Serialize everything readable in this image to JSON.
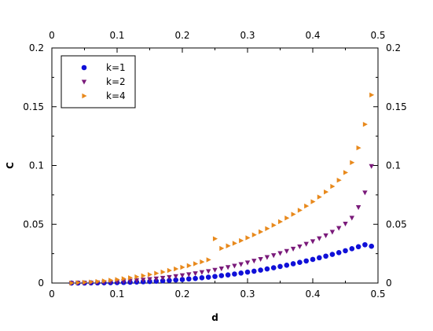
{
  "chart_data": {
    "type": "scatter",
    "title": "",
    "xlabel": "d",
    "ylabel": "C",
    "xlim": [
      0,
      0.5
    ],
    "ylim": [
      0,
      0.2
    ],
    "x_ticks": [
      0,
      0.1,
      0.2,
      0.3,
      0.4,
      0.5
    ],
    "x_tick_labels": [
      "0",
      "0.1",
      "0.2",
      "0.3",
      "0.4",
      "0.5"
    ],
    "y_ticks": [
      0,
      0.05,
      0.1,
      0.15,
      0.2
    ],
    "y_tick_labels": [
      "0",
      "0.05",
      "0.1",
      "0.15",
      "0.2"
    ],
    "mirrored_axes": true,
    "grid": false,
    "legend_position": "top-left",
    "series": [
      {
        "name": "k=1",
        "marker": "circle",
        "color": "#1010d8",
        "x": [
          0.03,
          0.04,
          0.05,
          0.06,
          0.07,
          0.08,
          0.09,
          0.1,
          0.11,
          0.12,
          0.13,
          0.14,
          0.15,
          0.16,
          0.17,
          0.18,
          0.19,
          0.2,
          0.21,
          0.22,
          0.23,
          0.24,
          0.25,
          0.26,
          0.27,
          0.28,
          0.29,
          0.3,
          0.31,
          0.32,
          0.33,
          0.34,
          0.35,
          0.36,
          0.37,
          0.38,
          0.39,
          0.4,
          0.41,
          0.42,
          0.43,
          0.44,
          0.45,
          0.46,
          0.47,
          0.48,
          0.49
        ],
        "y": [
          0,
          0,
          0,
          0.0001,
          0.0001,
          0.0002,
          0.0003,
          0.0004,
          0.0005,
          0.0007,
          0.0009,
          0.0011,
          0.0013,
          0.0016,
          0.0019,
          0.0022,
          0.0026,
          0.003,
          0.0035,
          0.0039,
          0.0045,
          0.005,
          0.0056,
          0.0063,
          0.0069,
          0.0077,
          0.0085,
          0.0093,
          0.0101,
          0.011,
          0.012,
          0.013,
          0.0141,
          0.0152,
          0.0164,
          0.0176,
          0.0188,
          0.0201,
          0.0215,
          0.0229,
          0.0244,
          0.0259,
          0.0275,
          0.0292,
          0.0309,
          0.0326,
          0.0313
        ]
      },
      {
        "name": "k=2",
        "marker": "triangle-down",
        "color": "#7a1a7a",
        "x": [
          0.03,
          0.04,
          0.05,
          0.06,
          0.07,
          0.08,
          0.09,
          0.1,
          0.11,
          0.12,
          0.13,
          0.14,
          0.15,
          0.16,
          0.17,
          0.18,
          0.19,
          0.2,
          0.21,
          0.22,
          0.23,
          0.24,
          0.25,
          0.26,
          0.27,
          0.28,
          0.29,
          0.3,
          0.31,
          0.32,
          0.33,
          0.34,
          0.35,
          0.36,
          0.37,
          0.38,
          0.39,
          0.4,
          0.41,
          0.42,
          0.43,
          0.44,
          0.45,
          0.46,
          0.47,
          0.48,
          0.49
        ],
        "y": [
          0,
          0.0001,
          0.0002,
          0.0003,
          0.0005,
          0.0007,
          0.0009,
          0.0012,
          0.0015,
          0.0019,
          0.0023,
          0.0028,
          0.0033,
          0.0038,
          0.0044,
          0.0051,
          0.0058,
          0.0066,
          0.0074,
          0.0082,
          0.0092,
          0.0101,
          0.0112,
          0.0123,
          0.0135,
          0.0147,
          0.016,
          0.0174,
          0.0189,
          0.0204,
          0.022,
          0.0236,
          0.0254,
          0.0272,
          0.0291,
          0.0311,
          0.0333,
          0.0355,
          0.038,
          0.0405,
          0.0435,
          0.0468,
          0.0505,
          0.0555,
          0.0645,
          0.077,
          0.0995
        ]
      },
      {
        "name": "k=4",
        "marker": "triangle-right",
        "color": "#e8891c",
        "x": [
          0.03,
          0.04,
          0.05,
          0.06,
          0.07,
          0.08,
          0.09,
          0.1,
          0.11,
          0.12,
          0.13,
          0.14,
          0.15,
          0.16,
          0.17,
          0.18,
          0.19,
          0.2,
          0.21,
          0.22,
          0.23,
          0.24,
          0.25,
          0.26,
          0.27,
          0.28,
          0.29,
          0.3,
          0.31,
          0.32,
          0.33,
          0.34,
          0.35,
          0.36,
          0.37,
          0.38,
          0.39,
          0.4,
          0.41,
          0.42,
          0.43,
          0.44,
          0.45,
          0.46,
          0.47,
          0.48,
          0.49
        ],
        "y": [
          0,
          0.0003,
          0.0006,
          0.0009,
          0.0013,
          0.0018,
          0.0024,
          0.003,
          0.0037,
          0.0045,
          0.0053,
          0.0062,
          0.0072,
          0.0083,
          0.0094,
          0.0107,
          0.012,
          0.0134,
          0.0148,
          0.0164,
          0.018,
          0.0198,
          0.0377,
          0.0295,
          0.0316,
          0.0338,
          0.0361,
          0.0385,
          0.041,
          0.0436,
          0.0463,
          0.0492,
          0.0522,
          0.0553,
          0.0585,
          0.0619,
          0.0655,
          0.0692,
          0.0732,
          0.0775,
          0.0822,
          0.0875,
          0.094,
          0.1025,
          0.115,
          0.135,
          0.16
        ]
      }
    ]
  }
}
